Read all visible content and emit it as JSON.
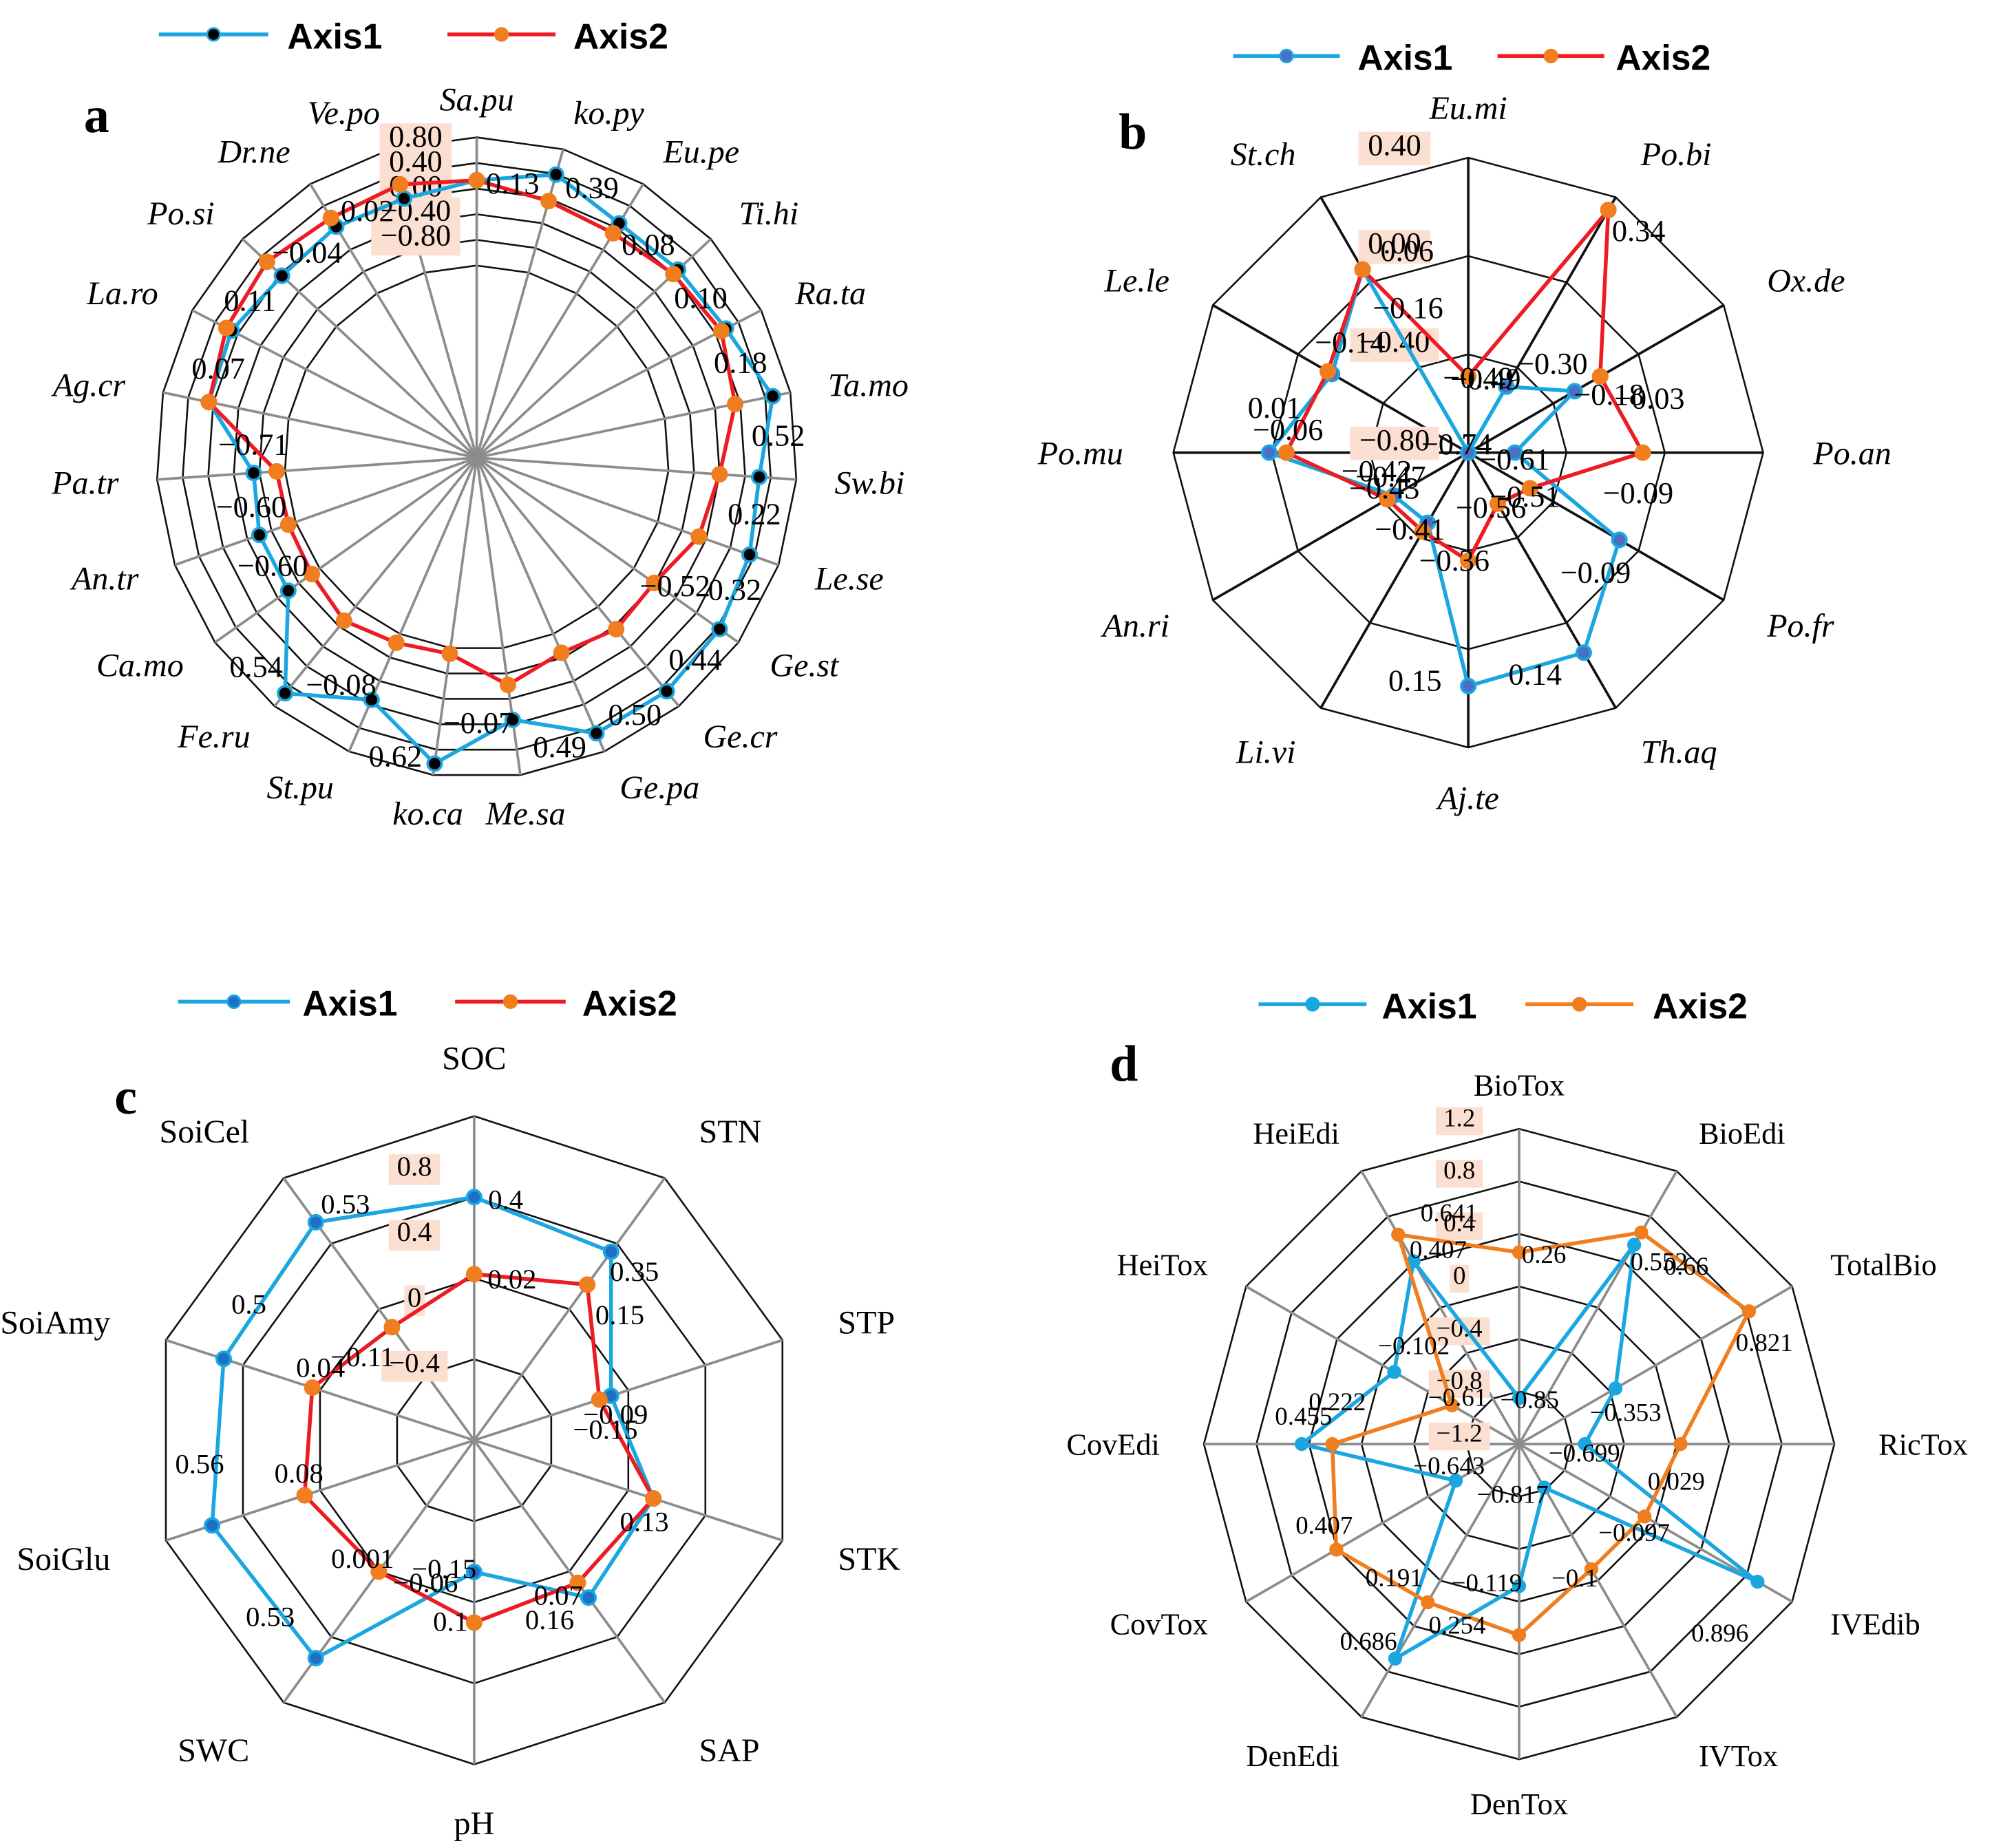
{
  "colors": {
    "axis1_line": "#1aa7e0",
    "axis2_line": "#ed1c24",
    "axis2_line_d": "#f07d1e",
    "axis2_marker": "#f07d1e",
    "axis1_marker_a": "#000000",
    "axis1_marker_b": "#4a6fc4",
    "axis1_marker_c": "#1f6fc6",
    "axis1_marker_d": "#1aa7e0",
    "ring_label_bg": "#fbe0d2",
    "grid_gray": "#8c8c8c",
    "grid_black": "#111111"
  },
  "chart_data": [
    {
      "type": "radar",
      "panel": "a",
      "legend": [
        "Axis1",
        "Axis2"
      ],
      "legend_position": "top",
      "categories": [
        "Sa.pu",
        "ko.py",
        "Eu.pe",
        "Ti.hi",
        "Ra.ta",
        "Ta.mo",
        "Sw.bi",
        "Le.se",
        "Ge.st",
        "Ge.cr",
        "Ge.pa",
        "Me.sa",
        "ko.ca",
        "St.pu",
        "Fe.ru",
        "Ca.mo",
        "An.tr",
        "Pa.tr",
        "Ag.cr",
        "La.ro",
        "Po.si",
        "Dr.ne",
        "Ve.po"
      ],
      "range": [
        -1.2,
        0.8
      ],
      "ring_values": [
        -1.2,
        -0.8,
        -0.4,
        0.0,
        0.4,
        0.8
      ],
      "ring_labels": [
        "0.80",
        "0.40",
        "0.00",
        "-0.40",
        "-0.80"
      ],
      "series": [
        {
          "name": "Axis1",
          "values": [
            0.13,
            0.39,
            0.08,
            0.1,
            0.18,
            0.52,
            0.22,
            0.32,
            0.44,
            0.5,
            0.49,
            -0.07,
            0.62,
            -0.08,
            0.54,
            -0.6,
            -0.6,
            -0.71,
            0.07,
            0.11,
            -0.04,
            0.02,
            0.0
          ]
        },
        {
          "name": "Axis2",
          "values": [
            0.13,
            -0.04,
            -0.1,
            0.0,
            0.1,
            -0.08,
            -0.4,
            -0.52,
            -0.81,
            -0.75,
            -0.88,
            -0.62,
            -1.11,
            -1.05,
            -0.92,
            -1.05,
            -1.08,
            -1.07,
            0.07,
            0.2,
            0.28,
            0.18,
            0.23
          ]
        }
      ],
      "value_labels": [
        {
          "text": "0.13",
          "cat": 0
        },
        {
          "text": "0.39",
          "cat": 1
        },
        {
          "text": "0.08",
          "cat": 2
        },
        {
          "text": "0.10",
          "cat": 3
        },
        {
          "text": "0.18",
          "cat": 4
        },
        {
          "text": "0.52",
          "cat": 5
        },
        {
          "text": "0.22",
          "cat": 6
        },
        {
          "text": "0.32",
          "cat": 7
        },
        {
          "text": "0.44",
          "cat": 8
        },
        {
          "text": "0.50",
          "cat": 9
        },
        {
          "text": "0.49",
          "cat": 10
        },
        {
          "text": "-0.07",
          "cat": 11
        },
        {
          "text": "0.62",
          "cat": 12
        },
        {
          "text": "-0.08",
          "cat": 13
        },
        {
          "text": "0.54",
          "cat": 14
        },
        {
          "text": "-0.60",
          "cat": 15
        },
        {
          "text": "-0.60",
          "cat": 16
        },
        {
          "text": "-0.71",
          "cat": 17
        },
        {
          "text": "0.07",
          "cat": 18
        },
        {
          "text": "0.11",
          "cat": 19
        },
        {
          "text": "-0.04",
          "cat": 20
        },
        {
          "text": "0.02",
          "cat": 21
        },
        {
          "text": "-0.52",
          "cat": 7
        }
      ]
    },
    {
      "type": "radar",
      "panel": "b",
      "legend": [
        "Axis1",
        "Axis2"
      ],
      "legend_position": "top",
      "categories": [
        "Eu.mi",
        "Po.bi",
        "Ox.de",
        "Po.an",
        "Po.fr",
        "Th.aq",
        "Aj.te",
        "Li.vi",
        "An.ri",
        "Po.mu",
        "Le.le",
        "St.ch"
      ],
      "range": [
        -0.8,
        0.4
      ],
      "ring_values": [
        -0.8,
        -0.4,
        0.0,
        0.4
      ],
      "ring_labels": [
        "0.40",
        "0.00",
        "-0.40",
        "-0.80"
      ],
      "series": [
        {
          "name": "Axis1",
          "values": [
            -0.8,
            -0.49,
            -0.3,
            -0.61,
            -0.09,
            0.14,
            0.15,
            -0.47,
            -0.45,
            0.01,
            -0.16,
            0.06
          ]
        },
        {
          "name": "Axis2",
          "values": [
            -0.49,
            0.34,
            -0.18,
            -0.09,
            -0.51,
            -0.56,
            -0.36,
            -0.43,
            -0.42,
            -0.06,
            -0.14,
            0.06
          ]
        }
      ],
      "value_labels": [
        {
          "text": "-0.49",
          "cat": 0
        },
        {
          "text": "-0.49",
          "cat": 0
        },
        {
          "text": "0.34",
          "cat": 1
        },
        {
          "text": "-0.30",
          "cat": 1
        },
        {
          "text": "-0.18",
          "cat": 2
        },
        {
          "text": "-0.03",
          "cat": 2
        },
        {
          "text": "-0.61",
          "cat": 3
        },
        {
          "text": "-0.09",
          "cat": 3
        },
        {
          "text": "-0.51",
          "cat": 4
        },
        {
          "text": "-0.09",
          "cat": 4
        },
        {
          "text": "-0.56",
          "cat": 5
        },
        {
          "text": "0.14",
          "cat": 5
        },
        {
          "text": "-0.36",
          "cat": 6
        },
        {
          "text": "0.15",
          "cat": 6
        },
        {
          "text": "-0.41",
          "cat": 7
        },
        {
          "text": "-0.43",
          "cat": 8
        },
        {
          "text": "-0.47",
          "cat": 8
        },
        {
          "text": "-0.42",
          "cat": 8
        },
        {
          "text": "-0.06",
          "cat": 9
        },
        {
          "text": "0.01",
          "cat": 9
        },
        {
          "text": "-0.74",
          "cat": 10
        },
        {
          "text": "-0.14",
          "cat": 10
        },
        {
          "text": "-0.16",
          "cat": 11
        },
        {
          "text": "0.06",
          "cat": 11
        }
      ]
    },
    {
      "type": "radar",
      "panel": "c",
      "legend": [
        "Axis1",
        "Axis2"
      ],
      "legend_position": "top",
      "categories": [
        "SOC",
        "STN",
        "STP",
        "STK",
        "SAP",
        "pH",
        "SWC",
        "SoiGlu",
        "SoiAmy",
        "SoiCel"
      ],
      "range": [
        -0.8,
        0.8
      ],
      "ring_values": [
        -0.8,
        -0.4,
        0.0,
        0.4,
        0.8
      ],
      "ring_labels": [
        "0.8",
        "0.4",
        "0",
        "-0.4"
      ],
      "series": [
        {
          "name": "Axis1",
          "values": [
            0.4,
            0.35,
            -0.09,
            0.13,
            0.16,
            -0.15,
            0.53,
            0.56,
            0.5,
            0.53
          ]
        },
        {
          "name": "Axis2",
          "values": [
            0.02,
            0.15,
            -0.15,
            0.13,
            0.07,
            0.1,
            0.001,
            0.08,
            0.04,
            -0.11
          ]
        }
      ],
      "value_labels": [
        {
          "text": "0.4",
          "cat": 0
        },
        {
          "text": "0.02",
          "cat": 0
        },
        {
          "text": "0.35",
          "cat": 1
        },
        {
          "text": "0.15",
          "cat": 1
        },
        {
          "text": "-0.09",
          "cat": 2
        },
        {
          "text": "-0.15",
          "cat": 2
        },
        {
          "text": "0.13",
          "cat": 3
        },
        {
          "text": "0.07",
          "cat": 4
        },
        {
          "text": "0.16",
          "cat": 4
        },
        {
          "text": "0.1",
          "cat": 5
        },
        {
          "text": "-0.15",
          "cat": 5
        },
        {
          "text": "-0.06",
          "cat": 5
        },
        {
          "text": "0.001",
          "cat": 6
        },
        {
          "text": "0.53",
          "cat": 6
        },
        {
          "text": "0.08",
          "cat": 7
        },
        {
          "text": "0.56",
          "cat": 7
        },
        {
          "text": "0.04",
          "cat": 8
        },
        {
          "text": "0.5",
          "cat": 8
        },
        {
          "text": "-0.11",
          "cat": 8
        },
        {
          "text": "0.53",
          "cat": 9
        }
      ]
    },
    {
      "type": "radar",
      "panel": "d",
      "legend": [
        "Axis1",
        "Axis2"
      ],
      "legend_position": "top",
      "categories": [
        "BioTox",
        "BioEdi",
        "TotalBio",
        "RicTox",
        "IVEdib",
        "IVTox",
        "DenTox",
        "DenEdi",
        "CovTox",
        "CovEdi",
        "HeiTox",
        "HeiEdi"
      ],
      "range": [
        -1.2,
        1.2
      ],
      "ring_values": [
        -1.2,
        -0.8,
        -0.4,
        0.0,
        0.4,
        0.8,
        1.2
      ],
      "ring_labels": [
        "1.2",
        "0.8",
        "0.4",
        "0",
        "-0.4",
        "-0.8",
        "-1.2"
      ],
      "series": [
        {
          "name": "Axis1",
          "values": [
            -0.85,
            0.552,
            -0.353,
            -0.699,
            0.896,
            -0.817,
            -0.119,
            0.686,
            -0.643,
            0.455,
            -0.102,
            0.407
          ]
        },
        {
          "name": "Axis2",
          "values": [
            0.26,
            0.66,
            0.821,
            0.029,
            -0.097,
            -0.1,
            0.254,
            0.191,
            0.407,
            0.222,
            -0.61,
            0.641
          ]
        }
      ],
      "value_labels": [
        {
          "text": "0.26",
          "cat": 0
        },
        {
          "text": "-0.85",
          "cat": 0
        },
        {
          "text": "0.552",
          "cat": 1
        },
        {
          "text": "0.66",
          "cat": 1
        },
        {
          "text": "0.821",
          "cat": 2
        },
        {
          "text": "-0.353",
          "cat": 2
        },
        {
          "text": "-0.699",
          "cat": 3
        },
        {
          "text": "0.029",
          "cat": 3
        },
        {
          "text": "-0.097",
          "cat": 4
        },
        {
          "text": "0.896",
          "cat": 4
        },
        {
          "text": "-0.1",
          "cat": 5
        },
        {
          "text": "-0.817",
          "cat": 6
        },
        {
          "text": "-0.119",
          "cat": 6
        },
        {
          "text": "0.254",
          "cat": 6
        },
        {
          "text": "0.686",
          "cat": 7
        },
        {
          "text": "0.191",
          "cat": 7
        },
        {
          "text": "0.407",
          "cat": 8
        },
        {
          "text": "-0.643",
          "cat": 8
        },
        {
          "text": "0.455",
          "cat": 9
        },
        {
          "text": "0.222",
          "cat": 9
        },
        {
          "text": "-0.61",
          "cat": 10
        },
        {
          "text": "-0.102",
          "cat": 10
        },
        {
          "text": "0.407",
          "cat": 11
        },
        {
          "text": "0.641",
          "cat": 11
        }
      ]
    }
  ]
}
